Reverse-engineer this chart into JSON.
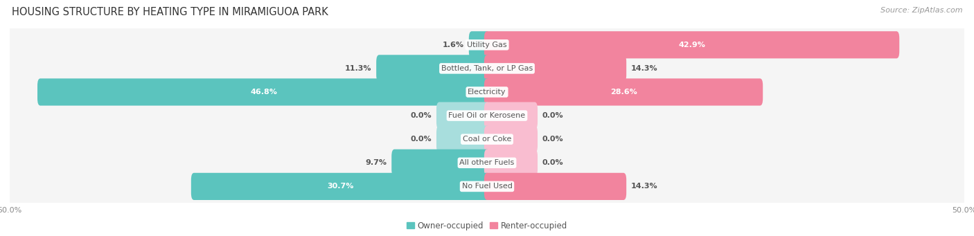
{
  "title": "Housing Structure by Heating Type in Miramiguoa Park",
  "source": "Source: ZipAtlas.com",
  "categories": [
    "Utility Gas",
    "Bottled, Tank, or LP Gas",
    "Electricity",
    "Fuel Oil or Kerosene",
    "Coal or Coke",
    "All other Fuels",
    "No Fuel Used"
  ],
  "owner_values": [
    1.6,
    11.3,
    46.8,
    0.0,
    0.0,
    9.7,
    30.7
  ],
  "renter_values": [
    42.9,
    14.3,
    28.6,
    0.0,
    0.0,
    0.0,
    14.3
  ],
  "owner_color": "#5BC4BE",
  "renter_color": "#F2849E",
  "owner_zero_color": "#A8DEDD",
  "renter_zero_color": "#F9BDD0",
  "background_color": "#FFFFFF",
  "row_bg_color": "#F0F0F0",
  "row_bg_shadow": "#DDDDDD",
  "x_min": -50.0,
  "x_max": 50.0,
  "label_fontsize": 8.0,
  "title_fontsize": 10.5,
  "source_fontsize": 8.0,
  "legend_fontsize": 8.5,
  "bar_height": 0.55,
  "zero_stub": 5.0,
  "label_color_dark": "#555555",
  "label_color_white": "#ffffff",
  "cat_label_color": "#555555",
  "tick_label_color": "#888888"
}
